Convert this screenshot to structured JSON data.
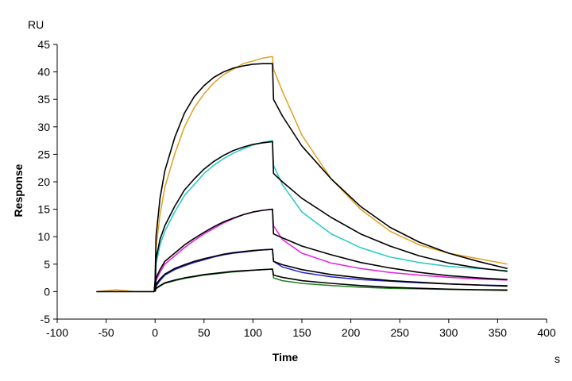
{
  "chart_data": {
    "type": "line",
    "xlabel": "Time",
    "ylabel": "Response",
    "x_unit": "s",
    "y_unit": "RU",
    "xlim": [
      -100,
      400
    ],
    "ylim": [
      -5,
      45
    ],
    "x_ticks": [
      -100,
      -50,
      0,
      50,
      100,
      150,
      200,
      250,
      300,
      350,
      400
    ],
    "y_ticks": [
      -5,
      0,
      5,
      10,
      15,
      20,
      25,
      30,
      35,
      40,
      45
    ],
    "grid": false,
    "legend": "none",
    "series": [
      {
        "color": "#e0a020",
        "x": [
          -60,
          -40,
          -20,
          -1,
          0,
          1,
          5,
          10,
          20,
          30,
          40,
          50,
          60,
          70,
          80,
          90,
          100,
          110,
          120,
          121,
          130,
          150,
          180,
          210,
          240,
          270,
          300,
          330,
          360
        ],
        "y": [
          0,
          0.3,
          0,
          0,
          2,
          8,
          14,
          19,
          25,
          30,
          33.5,
          36,
          38,
          39.5,
          40.5,
          41.5,
          42,
          42.5,
          42.8,
          40.5,
          36.5,
          28.5,
          20.5,
          15,
          11,
          8.5,
          7,
          6,
          5
        ]
      },
      {
        "color": "#20c8c8",
        "x": [
          0,
          1,
          5,
          10,
          20,
          30,
          40,
          50,
          60,
          70,
          80,
          90,
          100,
          110,
          120,
          121,
          130,
          150,
          180,
          210,
          240,
          270,
          300,
          330,
          360
        ],
        "y": [
          0,
          5,
          8.5,
          11,
          14.5,
          17.5,
          19.5,
          21.5,
          23,
          24.2,
          25.2,
          26,
          26.7,
          27.2,
          27.5,
          23,
          19.5,
          14.5,
          10.5,
          8,
          6.3,
          5.3,
          4.6,
          4.2,
          3.8
        ]
      },
      {
        "color": "#e020e0",
        "x": [
          0,
          1,
          5,
          10,
          20,
          30,
          40,
          50,
          60,
          70,
          80,
          90,
          100,
          110,
          120,
          121,
          130,
          150,
          180,
          210,
          240,
          270,
          300,
          330,
          360
        ],
        "y": [
          0,
          2,
          3.5,
          5,
          6.5,
          8,
          9.3,
          10.5,
          11.5,
          12.5,
          13.3,
          14,
          14.5,
          14.8,
          15,
          12,
          9.5,
          7,
          5.2,
          4.2,
          3.5,
          3,
          2.6,
          2.3,
          2.1
        ]
      },
      {
        "color": "#2020d0",
        "x": [
          0,
          1,
          5,
          10,
          20,
          30,
          40,
          50,
          60,
          70,
          80,
          90,
          100,
          110,
          120,
          121,
          130,
          150,
          180,
          210,
          240,
          270,
          300,
          330,
          360
        ],
        "y": [
          0,
          1,
          2,
          3,
          4,
          4.7,
          5.3,
          5.8,
          6.3,
          6.7,
          7,
          7.2,
          7.4,
          7.6,
          7.7,
          5.5,
          4.5,
          3.5,
          2.7,
          2.2,
          1.9,
          1.6,
          1.4,
          1.2,
          1.1
        ]
      },
      {
        "color": "#208020",
        "x": [
          0,
          1,
          5,
          10,
          20,
          30,
          40,
          50,
          60,
          70,
          80,
          90,
          100,
          110,
          120,
          121,
          130,
          150,
          180,
          210,
          240,
          270,
          300,
          330,
          360
        ],
        "y": [
          0,
          0.5,
          1,
          1.5,
          2,
          2.4,
          2.7,
          3,
          3.2,
          3.4,
          3.6,
          3.7,
          3.9,
          4,
          4.1,
          2.5,
          2,
          1.5,
          1.1,
          0.8,
          0.6,
          0.5,
          0.4,
          0.3,
          0.2
        ]
      },
      {
        "color": "#000000",
        "x": [
          -60,
          -1,
          0,
          1,
          5,
          10,
          20,
          30,
          40,
          50,
          60,
          70,
          80,
          90,
          100,
          110,
          120,
          121,
          130,
          150,
          180,
          210,
          240,
          270,
          300,
          330,
          360
        ],
        "y": [
          0,
          0,
          2,
          10,
          17,
          22,
          28,
          32.5,
          35.5,
          37.5,
          39,
          40,
          40.7,
          41.1,
          41.4,
          41.5,
          41.5,
          35,
          32,
          26.5,
          20.5,
          15.5,
          11.7,
          9,
          7,
          5.5,
          4.2
        ]
      },
      {
        "color": "#000000",
        "x": [
          0,
          1,
          5,
          10,
          20,
          30,
          40,
          50,
          60,
          70,
          80,
          90,
          100,
          110,
          120,
          121,
          130,
          150,
          180,
          210,
          240,
          270,
          300,
          330,
          360
        ],
        "y": [
          0,
          6,
          9.5,
          12,
          15.5,
          18.5,
          20.5,
          22.3,
          23.7,
          24.8,
          25.7,
          26.3,
          26.8,
          27.1,
          27.3,
          21.5,
          20,
          17,
          13.5,
          10.5,
          8.3,
          6.5,
          5.2,
          4.3,
          3.7
        ]
      },
      {
        "color": "#000000",
        "x": [
          0,
          1,
          5,
          10,
          20,
          30,
          40,
          50,
          60,
          70,
          80,
          90,
          100,
          110,
          120,
          121,
          130,
          150,
          180,
          210,
          240,
          270,
          300,
          330,
          360
        ],
        "y": [
          0,
          2.5,
          4,
          5.5,
          7,
          8.5,
          9.7,
          10.8,
          11.8,
          12.7,
          13.4,
          14,
          14.5,
          14.8,
          15,
          10.5,
          9.8,
          8.3,
          6.7,
          5.3,
          4.3,
          3.5,
          2.9,
          2.5,
          2.2
        ]
      },
      {
        "color": "#000000",
        "x": [
          0,
          1,
          5,
          10,
          20,
          30,
          40,
          50,
          60,
          70,
          80,
          90,
          100,
          110,
          120,
          121,
          130,
          150,
          180,
          210,
          240,
          270,
          300,
          330,
          360
        ],
        "y": [
          0,
          1.3,
          2.3,
          3.2,
          4.2,
          4.9,
          5.5,
          6,
          6.4,
          6.8,
          7.1,
          7.3,
          7.5,
          7.6,
          7.7,
          5.5,
          4.9,
          4,
          3.1,
          2.5,
          2,
          1.7,
          1.4,
          1.2,
          1
        ]
      },
      {
        "color": "#000000",
        "x": [
          0,
          1,
          5,
          10,
          20,
          30,
          40,
          50,
          60,
          70,
          80,
          90,
          100,
          110,
          120,
          121,
          130,
          150,
          180,
          210,
          240,
          270,
          300,
          330,
          360
        ],
        "y": [
          0,
          0.6,
          1.1,
          1.6,
          2.1,
          2.5,
          2.8,
          3.1,
          3.3,
          3.5,
          3.7,
          3.8,
          3.9,
          4,
          4.1,
          3,
          2.6,
          2,
          1.5,
          1.1,
          0.8,
          0.6,
          0.45,
          0.35,
          0.3
        ]
      }
    ]
  }
}
